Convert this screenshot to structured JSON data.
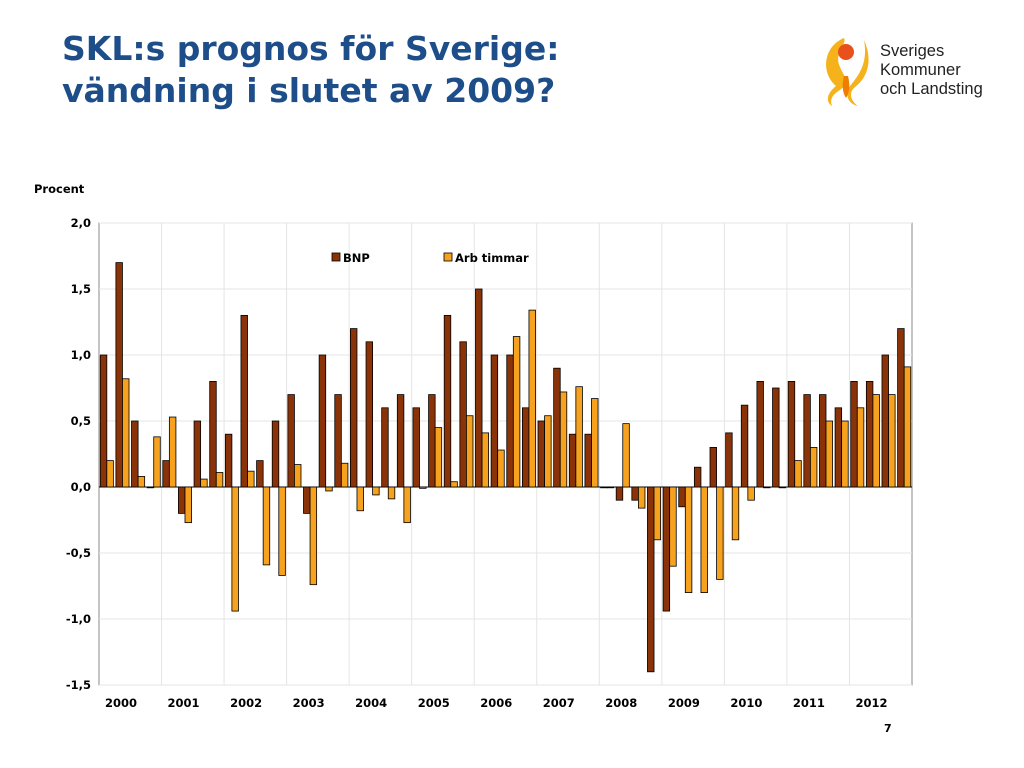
{
  "slide": {
    "title_line1": "SKL:s prognos för Sverige:",
    "title_line2": "vändning i slutet av 2009?",
    "page_number": "7"
  },
  "logo": {
    "line1": "Sveriges",
    "line2": "Kommuner",
    "line3": "och Landsting",
    "colors": {
      "yellow": "#f5b21a",
      "orange": "#ef7d00",
      "red": "#e9511c"
    }
  },
  "chart_data": {
    "type": "bar",
    "ylabel": "Procent",
    "ylim": [
      -1.5,
      2.0
    ],
    "yticks": [
      2.0,
      1.5,
      1.0,
      0.5,
      0.0,
      -0.5,
      -1.0,
      -1.5
    ],
    "ytick_labels": [
      "2,0",
      "1,5",
      "1,0",
      "0,5",
      "0,0",
      "-0,5",
      "-1,0",
      "-1,5"
    ],
    "x_year_labels": [
      "2000",
      "2001",
      "2002",
      "2003",
      "2004",
      "2005",
      "2006",
      "2007",
      "2008",
      "2009",
      "2010",
      "2011",
      "2012"
    ],
    "quarters_per_year": 4,
    "grid": true,
    "legend_position": "top-center",
    "series": [
      {
        "name": "BNP",
        "color": "#8b3308",
        "values": [
          1.0,
          1.7,
          0.5,
          0.0,
          0.2,
          -0.2,
          0.5,
          0.8,
          0.4,
          1.3,
          0.2,
          0.5,
          0.7,
          -0.2,
          1.0,
          0.7,
          1.2,
          1.1,
          0.6,
          0.7,
          0.6,
          0.7,
          1.3,
          1.1,
          1.5,
          1.0,
          1.0,
          0.6,
          0.5,
          0.9,
          0.4,
          0.4,
          0.0,
          -0.1,
          -0.1,
          -1.4,
          -0.94,
          -0.15,
          0.15,
          0.3,
          0.41,
          0.62,
          0.8,
          0.75,
          0.8,
          0.7,
          0.7,
          0.6,
          0.8,
          0.8,
          1.0,
          1.2
        ]
      },
      {
        "name": "Arb timmar",
        "color": "#f6a21f",
        "values": [
          0.2,
          0.82,
          0.08,
          0.38,
          0.53,
          -0.27,
          0.06,
          0.11,
          -0.94,
          0.12,
          -0.59,
          -0.67,
          0.17,
          -0.74,
          -0.03,
          0.18,
          -0.18,
          -0.06,
          -0.09,
          -0.27,
          -0.01,
          0.45,
          0.04,
          0.54,
          0.41,
          0.28,
          1.14,
          1.34,
          0.54,
          0.72,
          0.76,
          0.67,
          0.0,
          0.48,
          -0.16,
          -0.4,
          -0.6,
          -0.8,
          -0.8,
          -0.7,
          -0.4,
          -0.1,
          0.0,
          0.0,
          0.2,
          0.3,
          0.5,
          0.5,
          0.6,
          0.7,
          0.7,
          0.91
        ]
      }
    ]
  }
}
